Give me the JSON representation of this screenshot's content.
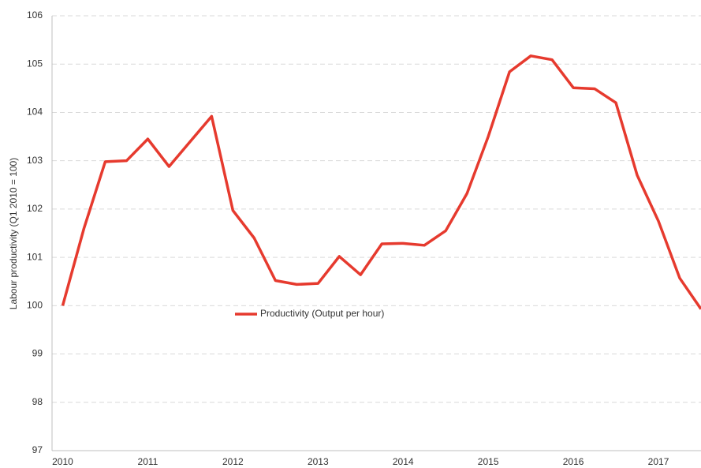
{
  "chart_data": {
    "type": "line",
    "y_label": "Labour productivity  (Q1 2010 = 100)",
    "categories": [
      "2010",
      null,
      null,
      null,
      "2011",
      null,
      null,
      null,
      "2012",
      null,
      null,
      null,
      "2013",
      null,
      null,
      null,
      "2014",
      null,
      null,
      null,
      "2015",
      null,
      null,
      null,
      "2016",
      null,
      null,
      null,
      "2017",
      null,
      null
    ],
    "series": [
      {
        "name": "Productivity (Output per hour)",
        "color": "#e63a2e",
        "values": [
          100.0,
          101.6,
          102.98,
          103.0,
          103.45,
          102.88,
          103.4,
          103.92,
          101.97,
          101.4,
          100.52,
          100.44,
          100.46,
          101.02,
          100.64,
          101.28,
          101.29,
          101.25,
          101.55,
          102.32,
          103.5,
          104.84,
          105.17,
          105.09,
          104.51,
          104.49,
          104.2,
          102.7,
          101.75,
          100.57,
          99.93
        ]
      }
    ],
    "ylim": [
      97,
      106
    ],
    "yticks": [
      97,
      98,
      99,
      100,
      101,
      102,
      103,
      104,
      105,
      106
    ],
    "grid": true
  }
}
